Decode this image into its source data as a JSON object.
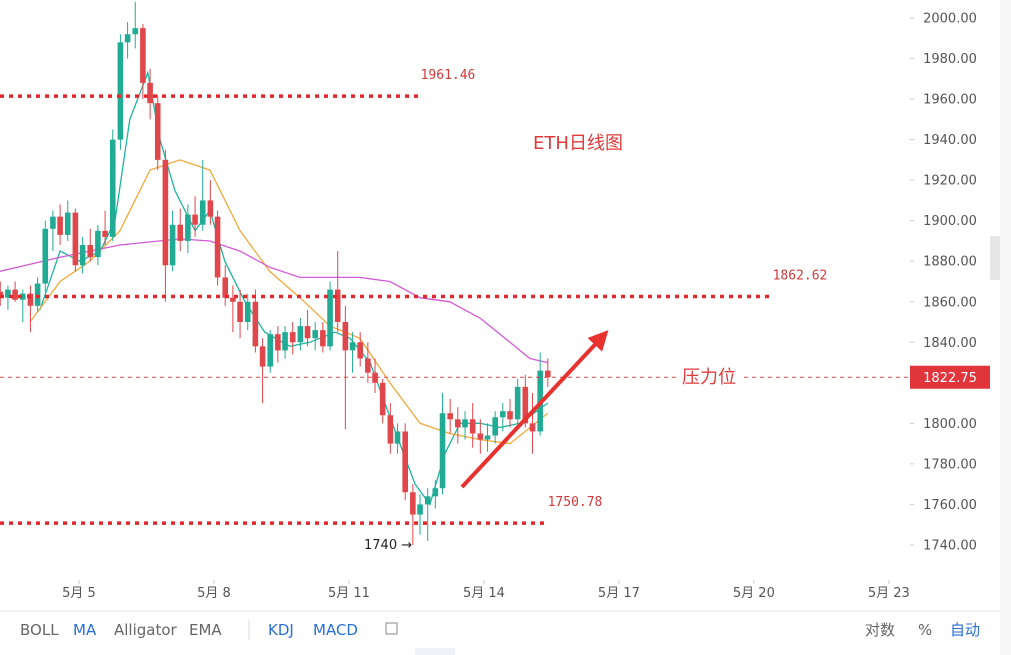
{
  "chart_data": {
    "type": "candlestick",
    "title": "ETH日线图",
    "up_color": "#22ab94",
    "down_color": "#e0474c",
    "xlim": [
      3.244,
      23.47
    ],
    "ylim": [
      1722.7,
      2008.9
    ],
    "xticks": [
      {
        "value": 5,
        "label": "5月 5"
      },
      {
        "value": 8,
        "label": "5月 8"
      },
      {
        "value": 11,
        "label": "5月 11"
      },
      {
        "value": 14,
        "label": "5月 14"
      },
      {
        "value": 17,
        "label": "5月 17"
      },
      {
        "value": 20,
        "label": "5月 20"
      },
      {
        "value": 23,
        "label": "5月 23"
      }
    ],
    "yticks": [
      {
        "value": 1740,
        "label": "1740.00"
      },
      {
        "value": 1760,
        "label": "1760.00"
      },
      {
        "value": 1780,
        "label": "1780.00"
      },
      {
        "value": 1800,
        "label": "1800.00"
      },
      {
        "value": 1820,
        "label": "1820.00"
      },
      {
        "value": 1840,
        "label": "1840.00"
      },
      {
        "value": 1860,
        "label": "1860.00"
      },
      {
        "value": 1880,
        "label": "1880.00"
      },
      {
        "value": 1900,
        "label": "1900.00"
      },
      {
        "value": 1920,
        "label": "1920.00"
      },
      {
        "value": 1940,
        "label": "1940.00"
      },
      {
        "value": 1960,
        "label": "1960.00"
      },
      {
        "value": 1980,
        "label": "1980.00"
      },
      {
        "value": 2000,
        "label": "2000.00"
      }
    ],
    "x": [
      3.25,
      3.42,
      3.58,
      3.75,
      3.92,
      4.08,
      4.25,
      4.42,
      4.58,
      4.75,
      4.92,
      5.08,
      5.25,
      5.42,
      5.58,
      5.75,
      5.92,
      6.08,
      6.25,
      6.42,
      6.58,
      6.75,
      6.92,
      7.08,
      7.25,
      7.42,
      7.58,
      7.75,
      7.92,
      8.08,
      8.25,
      8.42,
      8.58,
      8.75,
      8.92,
      9.08,
      9.25,
      9.42,
      9.58,
      9.75,
      9.92,
      10.08,
      10.25,
      10.42,
      10.58,
      10.75,
      10.92,
      11.08,
      11.25,
      11.42,
      11.58,
      11.75,
      11.92,
      12.08,
      12.25,
      12.42,
      12.58,
      12.75,
      12.92,
      13.08,
      13.25,
      13.42,
      13.58,
      13.75,
      13.92,
      14.08,
      14.25,
      14.42,
      14.58,
      14.75,
      14.92,
      15.08,
      15.25,
      15.42
    ],
    "open": [
      1865,
      1862,
      1866,
      1861,
      1864,
      1858,
      1869,
      1896,
      1902,
      1893,
      1904,
      1878,
      1888,
      1882,
      1895,
      1892,
      1940,
      1988,
      1992,
      1995,
      1968,
      1958,
      1930,
      1878,
      1898,
      1890,
      1903,
      1898,
      1910,
      1902,
      1872,
      1862,
      1860,
      1850,
      1860,
      1838,
      1828,
      1844,
      1836,
      1845,
      1840,
      1848,
      1842,
      1846,
      1838,
      1866,
      1850,
      1836,
      1840,
      1832,
      1825,
      1820,
      1804,
      1790,
      1796,
      1766,
      1755,
      1760,
      1764,
      1768,
      1805,
      1802,
      1798,
      1802,
      1795,
      1792,
      1794,
      1803,
      1806,
      1802,
      1818,
      1800,
      1796,
      1826
    ],
    "high": [
      1870,
      1868,
      1870,
      1866,
      1868,
      1872,
      1900,
      1905,
      1908,
      1910,
      1906,
      1892,
      1896,
      1898,
      1905,
      1945,
      1992,
      1998,
      2008,
      1997,
      1975,
      1962,
      1935,
      1905,
      1906,
      1908,
      1912,
      1930,
      1920,
      1905,
      1878,
      1868,
      1866,
      1864,
      1866,
      1842,
      1846,
      1848,
      1848,
      1850,
      1852,
      1856,
      1850,
      1850,
      1870,
      1885,
      1858,
      1845,
      1845,
      1840,
      1832,
      1822,
      1810,
      1800,
      1800,
      1770,
      1765,
      1768,
      1772,
      1815,
      1812,
      1808,
      1806,
      1810,
      1802,
      1800,
      1806,
      1810,
      1812,
      1822,
      1824,
      1815,
      1835,
      1832
    ],
    "low": [
      1858,
      1856,
      1860,
      1850,
      1845,
      1855,
      1865,
      1885,
      1888,
      1890,
      1875,
      1874,
      1880,
      1878,
      1888,
      1890,
      1935,
      1980,
      1985,
      1960,
      1950,
      1925,
      1860,
      1875,
      1885,
      1884,
      1892,
      1895,
      1898,
      1868,
      1858,
      1845,
      1842,
      1846,
      1835,
      1810,
      1825,
      1830,
      1832,
      1834,
      1836,
      1838,
      1836,
      1835,
      1836,
      1845,
      1797,
      1825,
      1828,
      1820,
      1815,
      1800,
      1785,
      1785,
      1762,
      1740,
      1745,
      1742,
      1758,
      1765,
      1795,
      1790,
      1792,
      1788,
      1785,
      1786,
      1790,
      1796,
      1798,
      1800,
      1798,
      1785,
      1794,
      1818
    ],
    "close": [
      1862,
      1866,
      1861,
      1864,
      1858,
      1869,
      1896,
      1902,
      1893,
      1904,
      1878,
      1888,
      1882,
      1895,
      1892,
      1940,
      1988,
      1992,
      1995,
      1968,
      1958,
      1930,
      1878,
      1898,
      1890,
      1903,
      1898,
      1910,
      1902,
      1872,
      1862,
      1860,
      1850,
      1860,
      1838,
      1828,
      1844,
      1836,
      1845,
      1840,
      1848,
      1842,
      1846,
      1838,
      1866,
      1850,
      1836,
      1840,
      1832,
      1825,
      1820,
      1804,
      1790,
      1796,
      1766,
      1755,
      1760,
      1764,
      1768,
      1805,
      1802,
      1798,
      1802,
      1795,
      1792,
      1794,
      1803,
      1806,
      1802,
      1818,
      1800,
      1796,
      1826,
      1822.75
    ],
    "moving_averages": [
      {
        "color": "#1fb5a0",
        "x": [
          4.13,
          4.58,
          5.02,
          5.47,
          5.8,
          6.13,
          6.53,
          6.8,
          7.13,
          7.58,
          7.91,
          8.24,
          8.69,
          9.13,
          9.69,
          10.13,
          10.69,
          11.02,
          11.47,
          11.8,
          12.13,
          12.47,
          12.8,
          13.13,
          13.47,
          13.91,
          14.36,
          14.8,
          15.42
        ],
        "values": [
          1856,
          1885,
          1880,
          1885,
          1900,
          1950,
          1973,
          1940,
          1915,
          1895,
          1905,
          1880,
          1860,
          1845,
          1838,
          1840,
          1845,
          1842,
          1830,
          1810,
          1790,
          1770,
          1760,
          1785,
          1800,
          1800,
          1798,
          1800,
          1810
        ]
      },
      {
        "color": "#f2a93b",
        "x": [
          3.91,
          4.58,
          5.24,
          5.91,
          6.58,
          7.24,
          7.91,
          8.58,
          9.24,
          9.91,
          10.58,
          11.24,
          11.91,
          12.58,
          13.24,
          13.91,
          14.58,
          15.42
        ],
        "values": [
          1850,
          1870,
          1880,
          1895,
          1925,
          1930,
          1925,
          1895,
          1875,
          1862,
          1848,
          1842,
          1820,
          1800,
          1795,
          1792,
          1790,
          1805
        ]
      },
      {
        "color": "#d45bd6",
        "x": [
          3.24,
          4.58,
          5.91,
          7.24,
          7.91,
          8.58,
          9.24,
          9.91,
          10.58,
          11.24,
          11.91,
          12.58,
          13.24,
          13.91,
          14.58,
          15.02,
          15.42
        ],
        "values": [
          1875,
          1882,
          1888,
          1891,
          1890,
          1885,
          1877,
          1872,
          1872,
          1872,
          1870,
          1862,
          1860,
          1852,
          1840,
          1832,
          1830
        ]
      }
    ],
    "levels": [
      1961.46,
      1862.62,
      1750.78
    ],
    "last_price": 1822.75,
    "annotations": [
      "压力位",
      "1740 →"
    ]
  },
  "toolbar": {
    "left": [
      "BOLL",
      "MA",
      "Alligator",
      "EMA"
    ],
    "oscillators": [
      "KDJ",
      "MACD"
    ],
    "right": [
      "对数",
      "%",
      "自动"
    ]
  }
}
